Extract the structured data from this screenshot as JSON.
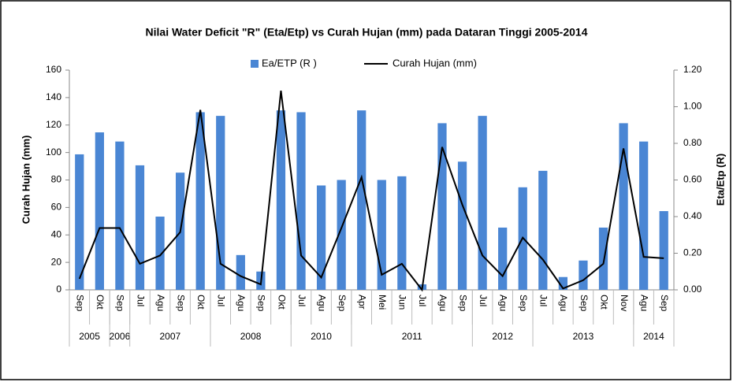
{
  "chart_data": {
    "type": "bar-line",
    "title": "Nilai Water Deficit \"R\" (Eta/Etp) vs Curah Hujan (mm) pada Dataran Tinggi 2005-2014",
    "ylabel": "Curah Hujan (mm)",
    "y2label": "Eta/Etp (R)",
    "categories": [
      "Sep",
      "Okt",
      "Sep",
      "Jul",
      "Agu",
      "Sep",
      "Okt",
      "Jul",
      "Agu",
      "Sep",
      "Okt",
      "Jul",
      "Agu",
      "Sep",
      "Apr",
      "Mei",
      "Jun",
      "Jul",
      "Agu",
      "Sep",
      "Jul",
      "Agu",
      "Sep",
      "Jul",
      "Agu",
      "Sep",
      "Okt",
      "Nov",
      "Agu",
      "Sep"
    ],
    "groups": [
      {
        "label": "2005",
        "count": 2
      },
      {
        "label": "2006",
        "count": 1
      },
      {
        "label": "2007",
        "count": 4
      },
      {
        "label": "2008",
        "count": 4
      },
      {
        "label": "2010",
        "count": 3
      },
      {
        "label": "2011",
        "count": 6
      },
      {
        "label": "2012",
        "count": 3
      },
      {
        "label": "2013",
        "count": 5
      },
      {
        "label": "2014",
        "count": 2
      }
    ],
    "series": [
      {
        "name": "Ea/ETP (R )",
        "type": "bar",
        "axis": "y2",
        "color": "#4a86d4",
        "values": [
          0.74,
          0.86,
          0.81,
          0.68,
          0.4,
          0.64,
          0.97,
          0.95,
          0.19,
          0.1,
          0.98,
          0.97,
          0.57,
          0.6,
          0.98,
          0.6,
          0.62,
          0.03,
          0.91,
          0.7,
          0.95,
          0.34,
          0.56,
          0.65,
          0.07,
          0.16,
          0.34,
          0.91,
          0.81,
          0.43
        ]
      },
      {
        "name": "Curah Hujan (mm)",
        "type": "line",
        "axis": "y",
        "color": "#000000",
        "values": [
          8,
          45,
          45,
          19,
          25,
          42,
          131,
          19,
          10,
          4,
          145,
          25,
          9,
          45,
          82,
          11,
          19,
          0,
          104,
          62,
          25,
          10,
          38,
          22,
          1,
          7,
          19,
          103,
          24,
          23
        ]
      }
    ],
    "ylim": [
      0,
      160
    ],
    "yticks": [
      0,
      20,
      40,
      60,
      80,
      100,
      120,
      140,
      160
    ],
    "y2lim": [
      0,
      1.2
    ],
    "y2ticks": [
      {
        "value": 0,
        "label": "0.00"
      },
      {
        "value": 0.2,
        "label": "0.20"
      },
      {
        "value": 0.4,
        "label": "0.40"
      },
      {
        "value": 0.6,
        "label": "0.60"
      },
      {
        "value": 0.8,
        "label": "0.80"
      },
      {
        "value": 1,
        "label": "1.00"
      },
      {
        "value": 1.2,
        "label": "1.20"
      }
    ],
    "legend": "top"
  }
}
